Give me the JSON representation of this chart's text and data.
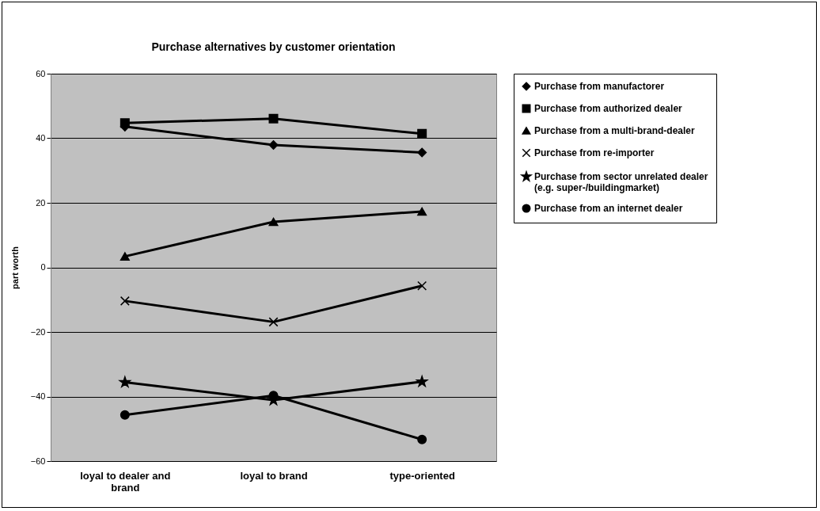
{
  "chart_data": {
    "type": "line",
    "title": "Purchase alternatives by customer orientation",
    "ylabel": "part worth",
    "categories": [
      "loyal to dealer and brand",
      "loyal to brand",
      "type-oriented"
    ],
    "ylim": [
      -60,
      60
    ],
    "yticks": [
      -60,
      -40,
      -20,
      0,
      20,
      40,
      60
    ],
    "grid": "y",
    "legend": "right",
    "line_style": "solid",
    "series": [
      {
        "name": "Purchase from manufactorer",
        "color": "#000000",
        "marker": "diamond",
        "values": [
          43.6,
          37.9,
          35.6
        ]
      },
      {
        "name": "Purchase from authorized dealer",
        "color": "#000000",
        "marker": "square",
        "values": [
          44.7,
          46.1,
          41.4
        ]
      },
      {
        "name": "Purchase from a multi-brand-dealer",
        "color": "#000000",
        "marker": "triangle",
        "values": [
          3.4,
          14.1,
          17.3
        ]
      },
      {
        "name": "Purchase from re-importer",
        "color": "#000000",
        "marker": "cross",
        "values": [
          -10.4,
          -16.9,
          -5.7
        ]
      },
      {
        "name": "Purchase from sector unrelated dealer (e.g. super-/buildingmarket)",
        "color": "#000000",
        "marker": "star",
        "values": [
          -35.6,
          -41.1,
          -35.4
        ]
      },
      {
        "name": "Purchase from an internet dealer",
        "color": "#000000",
        "marker": "circle",
        "values": [
          -45.7,
          -39.7,
          -53.3
        ]
      }
    ]
  }
}
